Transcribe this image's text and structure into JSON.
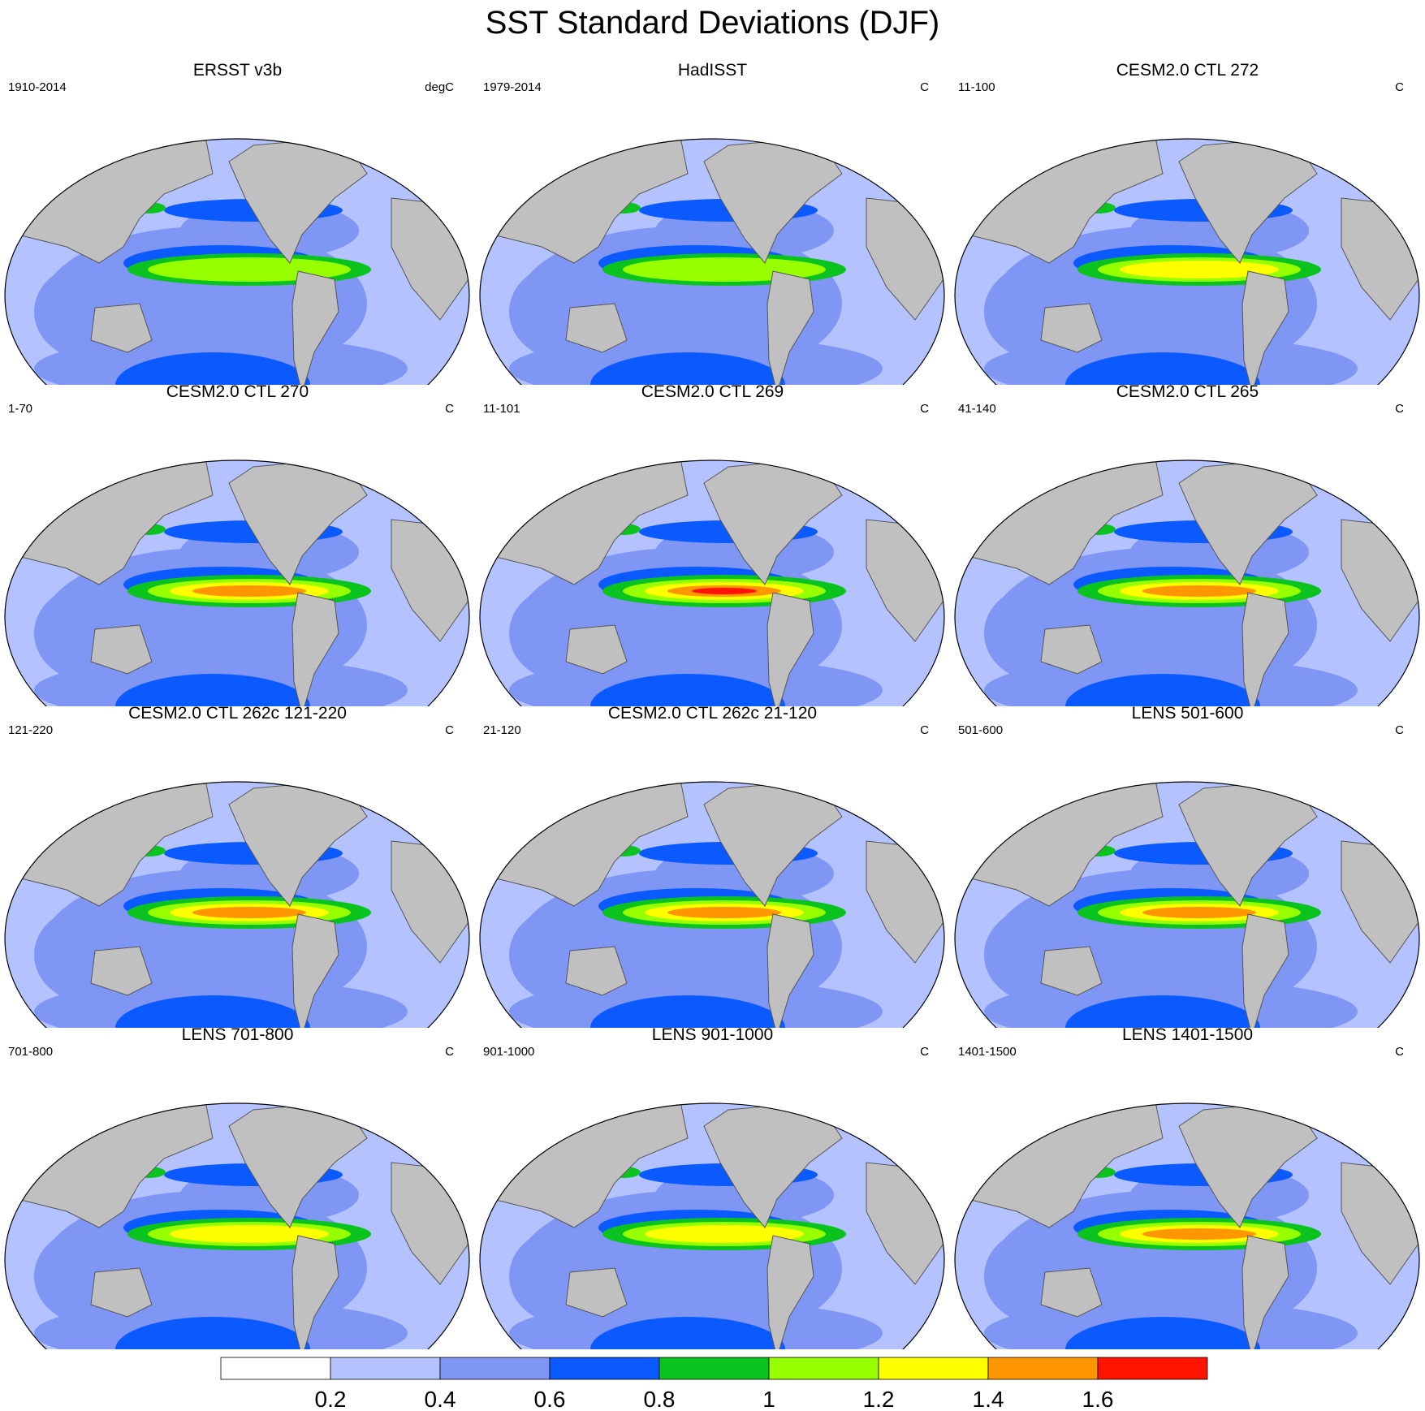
{
  "title": "SST Standard Deviations (DJF)",
  "panels": [
    {
      "title": "ERSST v3b",
      "period": "1910-2014",
      "units": "degC",
      "enso_level": 1.0
    },
    {
      "title": "HadISST",
      "period": "1979-2014",
      "units": "C",
      "enso_level": 1.0
    },
    {
      "title": "CESM2.0 CTL 272",
      "period": "11-100",
      "units": "C",
      "enso_level": 1.3
    },
    {
      "title": "CESM2.0 CTL 270",
      "period": "1-70",
      "units": "C",
      "enso_level": 1.5
    },
    {
      "title": "CESM2.0 CTL 269",
      "period": "11-101",
      "units": "C",
      "enso_level": 1.7
    },
    {
      "title": "CESM2.0 CTL 265",
      "period": "41-140",
      "units": "C",
      "enso_level": 1.5
    },
    {
      "title": "CESM2.0 CTL 262c 121-220",
      "period": "121-220",
      "units": "C",
      "enso_level": 1.5
    },
    {
      "title": "CESM2.0 CTL 262c 21-120",
      "period": "21-120",
      "units": "C",
      "enso_level": 1.5
    },
    {
      "title": "LENS 501-600",
      "period": "501-600",
      "units": "C",
      "enso_level": 1.5
    },
    {
      "title": "LENS 701-800",
      "period": "701-800",
      "units": "C",
      "enso_level": 1.3
    },
    {
      "title": "LENS 901-1000",
      "period": "901-1000",
      "units": "C",
      "enso_level": 1.3
    },
    {
      "title": "LENS 1401-1500",
      "period": "1401-1500",
      "units": "C",
      "enso_level": 1.5
    }
  ],
  "colorbar": {
    "levels": [
      "0.2",
      "0.4",
      "0.6",
      "0.8",
      "1",
      "1.2",
      "1.4",
      "1.6"
    ],
    "colors": [
      "#ffffff",
      "#b4c3ff",
      "#7f96f5",
      "#0a5aff",
      "#0ac31e",
      "#96ff00",
      "#ffff00",
      "#ff9600",
      "#ff1400"
    ]
  },
  "land_color": "#c0c0c0"
}
